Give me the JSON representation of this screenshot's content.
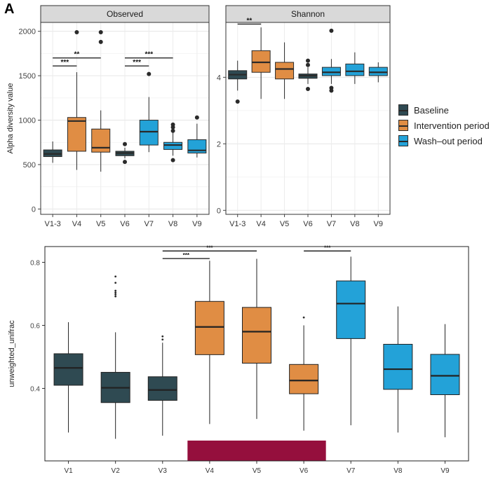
{
  "panel_label": "A",
  "legend": [
    {
      "label": "Baseline",
      "color": "#2f4a52"
    },
    {
      "label": "Intervention period",
      "color": "#e08d44"
    },
    {
      "label": "Wash–out period",
      "color": "#23a2d8"
    }
  ],
  "chart_data": [
    {
      "type": "box",
      "facet": "Observed",
      "ylabel": "Alpha diversity value",
      "xlabel": "",
      "ylim": [
        -60,
        2100
      ],
      "yticks": [
        0,
        500,
        1000,
        1500,
        2000
      ],
      "categories": [
        "V1-3",
        "V4",
        "V5",
        "V6",
        "V7",
        "V8",
        "V9"
      ],
      "groups": [
        "Baseline",
        "Intervention period",
        "Intervention period",
        "Baseline",
        "Wash–out period",
        "Wash–out period",
        "Wash–out period"
      ],
      "boxes": [
        {
          "q1": 590,
          "median": 620,
          "q3": 665,
          "whisker_low": 520,
          "whisker_high": 760,
          "outliers": []
        },
        {
          "q1": 650,
          "median": 990,
          "q3": 1030,
          "whisker_low": 440,
          "whisker_high": 1540,
          "outliers": [
            1990
          ]
        },
        {
          "q1": 640,
          "median": 690,
          "q3": 900,
          "whisker_low": 420,
          "whisker_high": 1110,
          "outliers": [
            1880,
            1990
          ]
        },
        {
          "q1": 600,
          "median": 630,
          "q3": 650,
          "whisker_low": 570,
          "whisker_high": 690,
          "outliers": [
            530,
            730
          ]
        },
        {
          "q1": 720,
          "median": 870,
          "q3": 1000,
          "whisker_low": 640,
          "whisker_high": 1260,
          "outliers": [
            1520
          ]
        },
        {
          "q1": 670,
          "median": 720,
          "q3": 750,
          "whisker_low": 600,
          "whisker_high": 860,
          "outliers": [
            550,
            880,
            920,
            950
          ]
        },
        {
          "q1": 630,
          "median": 660,
          "q3": 780,
          "whisker_low": 580,
          "whisker_high": 960,
          "outliers": [
            1030
          ]
        }
      ],
      "significance": [
        {
          "from": "V1-3",
          "to": "V4",
          "label": "***",
          "y": 1610
        },
        {
          "from": "V1-3",
          "to": "V5",
          "label": "**",
          "y": 1700
        },
        {
          "from": "V6",
          "to": "V7",
          "label": "***",
          "y": 1610
        },
        {
          "from": "V6",
          "to": "V8",
          "label": "***",
          "y": 1700
        }
      ]
    },
    {
      "type": "box",
      "facet": "Shannon",
      "ylabel": "",
      "xlabel": "",
      "ylim": [
        -0.12,
        5.65
      ],
      "yticks": [
        0,
        2,
        4
      ],
      "categories": [
        "V1-3",
        "V4",
        "V5",
        "V6",
        "V7",
        "V8",
        "V9"
      ],
      "groups": [
        "Baseline",
        "Intervention period",
        "Intervention period",
        "Baseline",
        "Wash–out period",
        "Wash–out period",
        "Wash–out period"
      ],
      "boxes": [
        {
          "q1": 3.95,
          "median": 4.08,
          "q3": 4.2,
          "whisker_low": 3.6,
          "whisker_high": 4.5,
          "outliers": [
            3.27
          ]
        },
        {
          "q1": 4.15,
          "median": 4.45,
          "q3": 4.8,
          "whisker_low": 3.35,
          "whisker_high": 5.5,
          "outliers": []
        },
        {
          "q1": 3.95,
          "median": 4.25,
          "q3": 4.45,
          "whisker_low": 3.35,
          "whisker_high": 5.05,
          "outliers": []
        },
        {
          "q1": 3.97,
          "median": 4.05,
          "q3": 4.1,
          "whisker_low": 3.8,
          "whisker_high": 4.3,
          "outliers": [
            3.65,
            4.37,
            4.5
          ]
        },
        {
          "q1": 4.05,
          "median": 4.15,
          "q3": 4.3,
          "whisker_low": 3.8,
          "whisker_high": 4.55,
          "outliers": [
            3.6,
            3.68,
            5.4
          ]
        },
        {
          "q1": 4.05,
          "median": 4.18,
          "q3": 4.4,
          "whisker_low": 3.8,
          "whisker_high": 4.75,
          "outliers": []
        },
        {
          "q1": 4.05,
          "median": 4.15,
          "q3": 4.3,
          "whisker_low": 3.85,
          "whisker_high": 4.45,
          "outliers": []
        }
      ],
      "significance": [
        {
          "from": "V1-3",
          "to": "V4",
          "label": "**",
          "y": 5.6
        }
      ]
    },
    {
      "type": "box",
      "facet": "",
      "ylabel": "unweighted_unifrac",
      "xlabel": "",
      "ylim": [
        0.17,
        0.85
      ],
      "yticks": [
        0.4,
        0.6,
        0.8
      ],
      "categories": [
        "V1",
        "V2",
        "V3",
        "V4",
        "V5",
        "V6",
        "V7",
        "V8",
        "V9"
      ],
      "groups": [
        "Baseline",
        "Baseline",
        "Baseline",
        "Intervention period",
        "Intervention period",
        "Intervention period",
        "Wash–out period",
        "Wash–out period",
        "Wash–out period"
      ],
      "boxes": [
        {
          "q1": 0.41,
          "median": 0.465,
          "q3": 0.51,
          "whisker_low": 0.26,
          "whisker_high": 0.61,
          "outliers": []
        },
        {
          "q1": 0.355,
          "median": 0.402,
          "q3": 0.451,
          "whisker_low": 0.24,
          "whisker_high": 0.578,
          "outliers": [
            0.692,
            0.698,
            0.704,
            0.71,
            0.735,
            0.755
          ]
        },
        {
          "q1": 0.362,
          "median": 0.395,
          "q3": 0.437,
          "whisker_low": 0.25,
          "whisker_high": 0.545,
          "outliers": [
            0.555,
            0.565
          ]
        },
        {
          "q1": 0.507,
          "median": 0.595,
          "q3": 0.676,
          "whisker_low": 0.287,
          "whisker_high": 0.805,
          "outliers": []
        },
        {
          "q1": 0.48,
          "median": 0.58,
          "q3": 0.657,
          "whisker_low": 0.303,
          "whisker_high": 0.811,
          "outliers": []
        },
        {
          "q1": 0.383,
          "median": 0.425,
          "q3": 0.476,
          "whisker_low": 0.266,
          "whisker_high": 0.6,
          "outliers": [
            0.625
          ]
        },
        {
          "q1": 0.558,
          "median": 0.669,
          "q3": 0.741,
          "whisker_low": 0.283,
          "whisker_high": 0.818,
          "outliers": []
        },
        {
          "q1": 0.397,
          "median": 0.461,
          "q3": 0.54,
          "whisker_low": 0.26,
          "whisker_high": 0.66,
          "outliers": []
        },
        {
          "q1": 0.38,
          "median": 0.44,
          "q3": 0.508,
          "whisker_low": 0.245,
          "whisker_high": 0.604,
          "outliers": []
        }
      ],
      "significance": [
        {
          "from": "V3",
          "to": "V4",
          "label": "***",
          "y": 0.812
        },
        {
          "from": "V3",
          "to": "V5",
          "label": "***",
          "y": 0.836
        },
        {
          "from": "V6",
          "to": "V7",
          "label": "***",
          "y": 0.836
        }
      ],
      "highlight": {
        "from": "V4",
        "to": "V6",
        "color": "#950f3d"
      }
    }
  ]
}
